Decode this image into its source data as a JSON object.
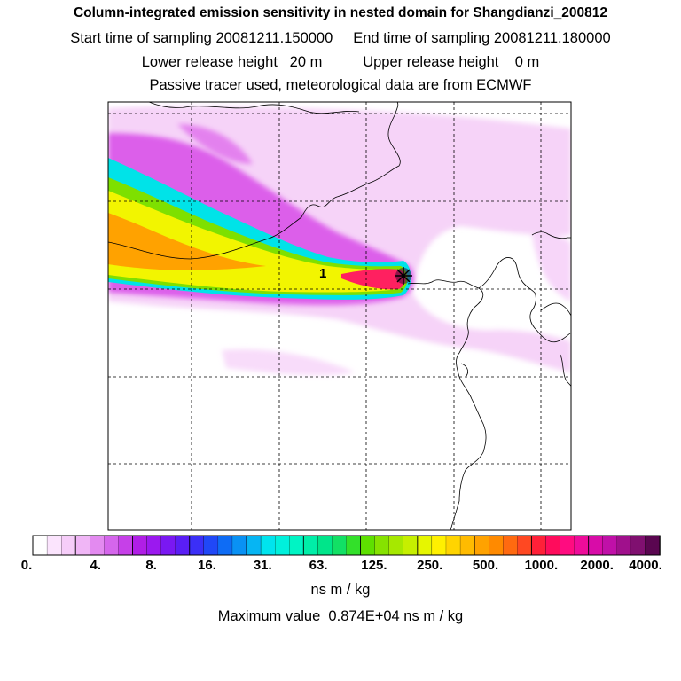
{
  "header": {
    "title": "Column-integrated emission sensitivity in nested domain for Shangdianzi_200812",
    "sampling": "Start time of sampling 20081211.150000     End time of sampling 20081211.180000",
    "release": "Lower release height   20 m          Upper release height    0 m",
    "tracer": "Passive tracer used, meteorological data are from ECMWF"
  },
  "map": {
    "station_marker_label": "1",
    "plume_colors": {
      "light_pink": "#f3c4f6",
      "magenta": "#d84ce8",
      "cyan": "#00e3e8",
      "green": "#7ee000",
      "yellow": "#f2f500",
      "orange": "#ffa200",
      "red": "#ff2060"
    }
  },
  "colorbar": {
    "ticks": [
      "0.",
      "4.",
      "8.",
      "16.",
      "31.",
      "63.",
      "125.",
      "250.",
      "500.",
      "1000.",
      "2000.",
      "4000."
    ],
    "colors": [
      "#ffffff",
      "#fbe4fd",
      "#f6cdf9",
      "#f0b6f6",
      "#e38af0",
      "#d566ec",
      "#c640e8",
      "#b01ee6",
      "#9b19ef",
      "#7a18f2",
      "#5a1ef5",
      "#3b2ff7",
      "#2048f7",
      "#0e6cf5",
      "#0991f4",
      "#06b5f3",
      "#00e4ee",
      "#00f0dc",
      "#00f4c4",
      "#00eea8",
      "#00e58a",
      "#12e065",
      "#33e02a",
      "#5ee000",
      "#86e200",
      "#a6e800",
      "#c6ef00",
      "#e6f600",
      "#fff000",
      "#ffd400",
      "#ffbb00",
      "#ffa200",
      "#ff8a00",
      "#ff6a10",
      "#ff4822",
      "#ff2038",
      "#ff0c5c",
      "#ff0c80",
      "#ee0c9a",
      "#d80ca8",
      "#c010a8",
      "#a0108c",
      "#801070",
      "#5a0650"
    ],
    "units": "ns m / kg",
    "max_value_text": "Maximum value  0.874E+04 ns m / kg"
  }
}
